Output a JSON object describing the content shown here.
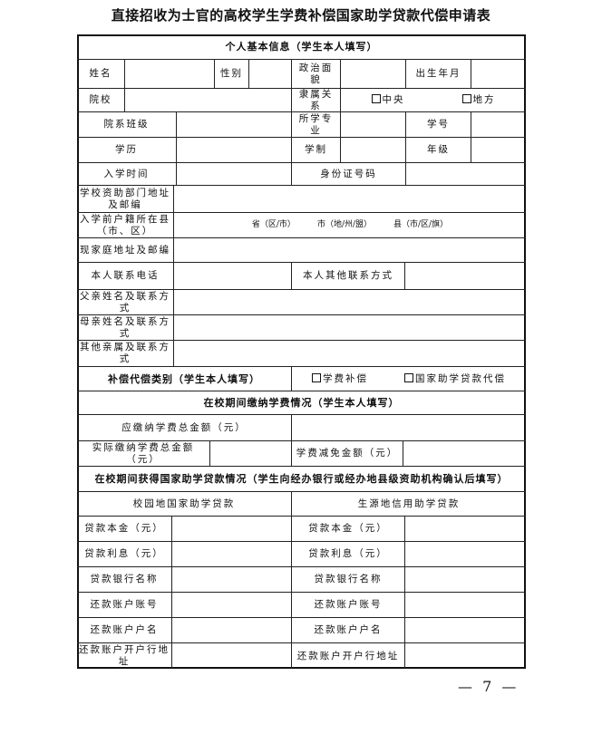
{
  "title": "直接招收为士官的高校学生学费补偿国家助学贷款代偿申请表",
  "page_number": "— 7 —",
  "sections": {
    "personal": "个人基本信息（学生本人填写）",
    "compensation_type": "补偿代偿类别（学生本人填写）",
    "tuition": "在校期间缴纳学费情况（学生本人填写）",
    "loans": "在校期间获得国家助学贷款情况（学生向经办银行或经办地县级资助机构确认后填写）"
  },
  "labels": {
    "name": "姓名",
    "gender": "性别",
    "political_status": "政治面貌",
    "birth_date": "出生年月",
    "school": "院校",
    "affiliation": "隶属关系",
    "department_class": "院系班级",
    "major": "所学专业",
    "student_id": "学号",
    "education": "学历",
    "program_length": "学制",
    "grade": "年级",
    "enrollment_date": "入学时间",
    "id_number": "身份证号码",
    "aid_office_address": "学校资助部门地址及邮编",
    "hukou_before": "入学前户籍所在县（市、区）",
    "home_address": "现家庭地址及邮编",
    "phone": "本人联系电话",
    "other_contact": "本人其他联系方式",
    "father": "父亲姓名及联系方式",
    "mother": "母亲姓名及联系方式",
    "other_relatives": "其他亲属及联系方式",
    "tuition_due": "应缴纳学费总金额（元）",
    "tuition_paid": "实际缴纳学费总金额（元）",
    "tuition_waived": "学费减免金额（元）",
    "campus_loan": "校园地国家助学贷款",
    "origin_loan": "生源地信用助学贷款",
    "loan_principal": "贷款本金（元）",
    "loan_interest": "贷款利息（元）",
    "bank_name": "贷款银行名称",
    "account_number": "还款账户账号",
    "account_name": "还款账户户名",
    "account_bank_address": "还款账户开户行地址"
  },
  "hukou_template": {
    "province": "省（区/市）",
    "city": "市（地/州/盟）",
    "county": "县（市/区/旗）"
  },
  "options": {
    "affiliation": [
      "中央",
      "地方"
    ],
    "compensation": [
      "学费补偿",
      "国家助学贷款代偿"
    ]
  }
}
